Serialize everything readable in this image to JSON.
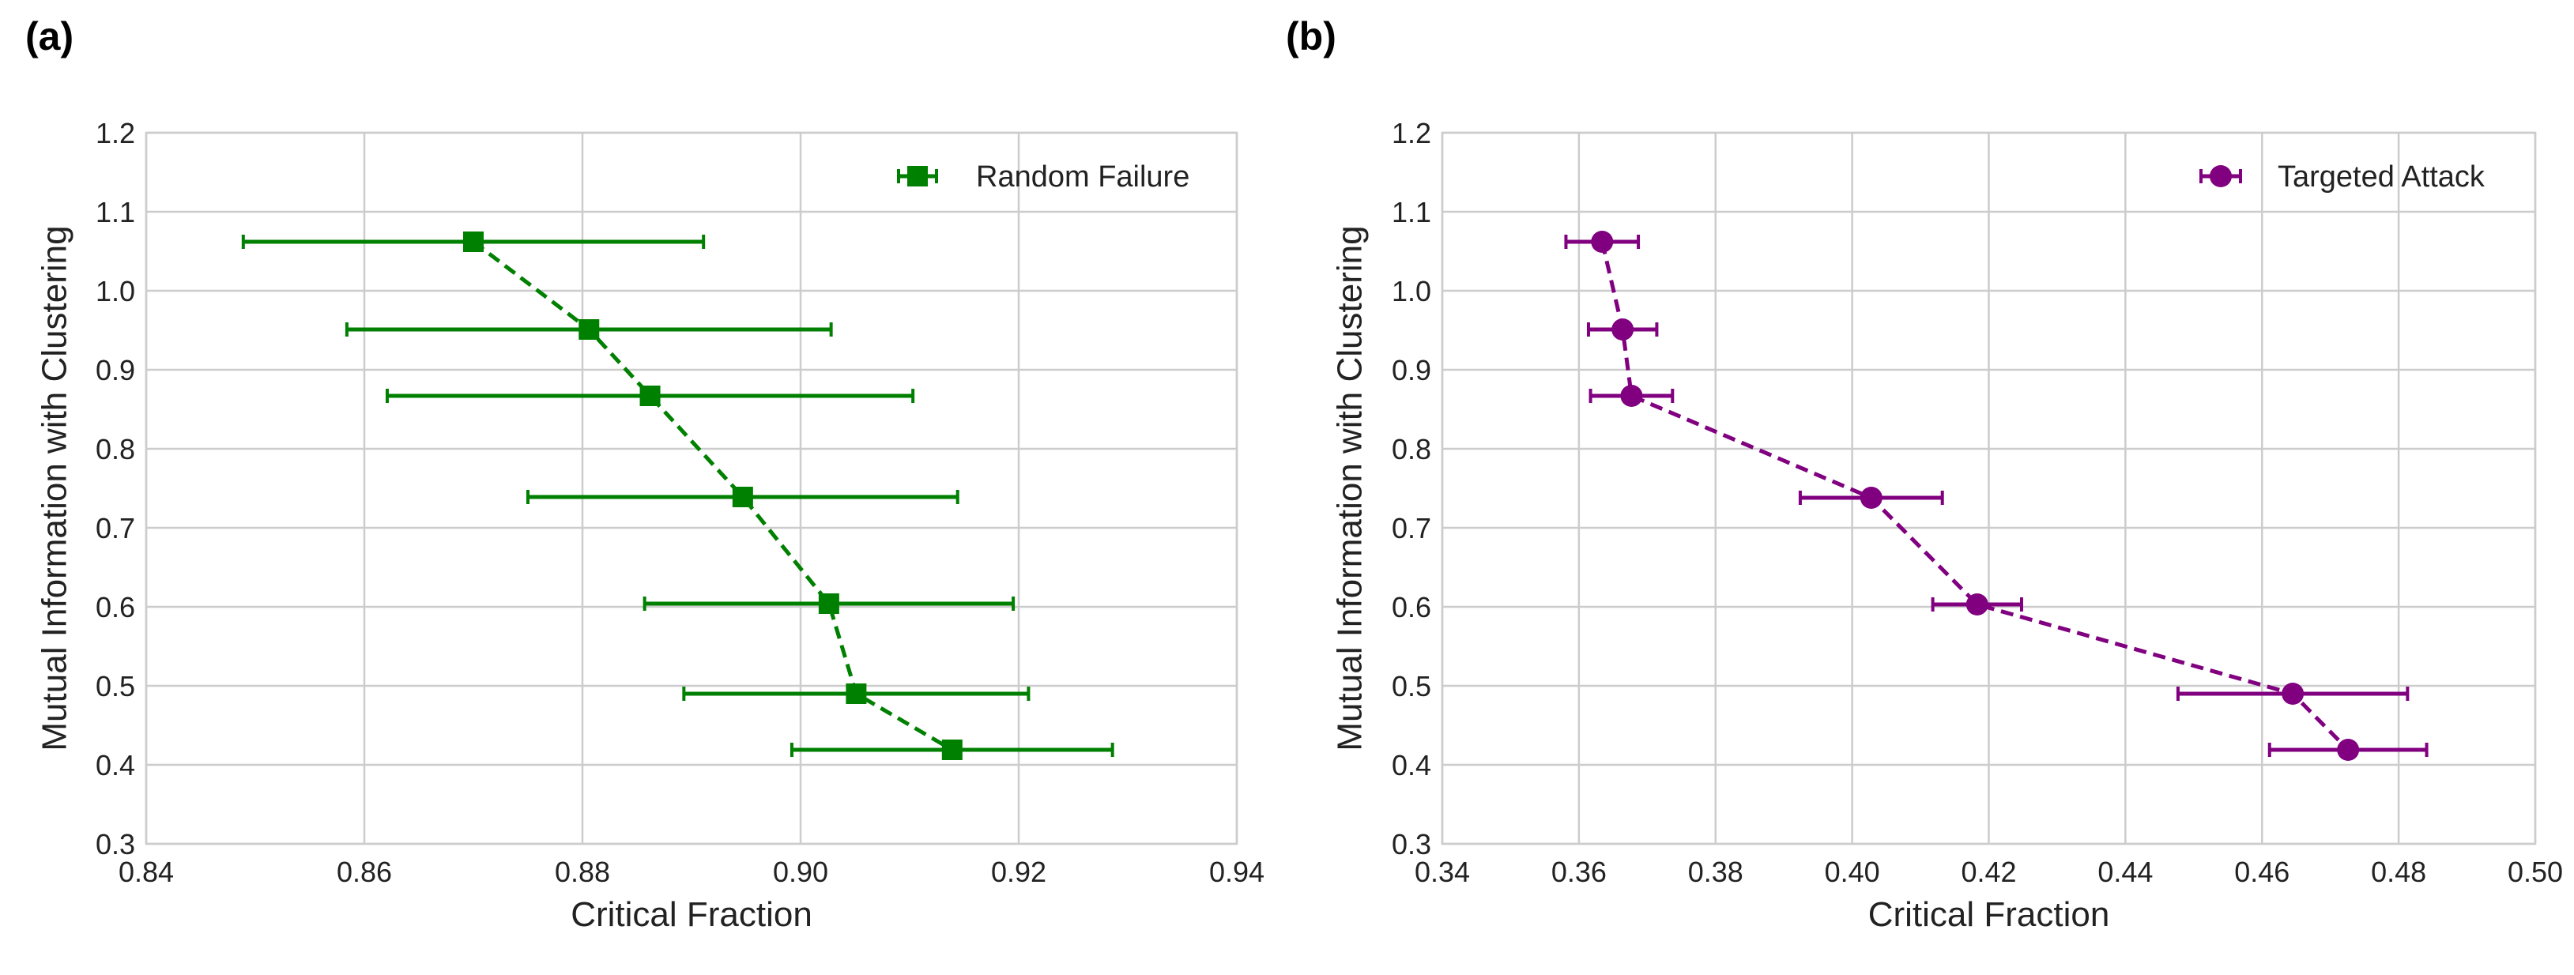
{
  "chart_data": [
    {
      "type": "scatter",
      "panel_label": "(a)",
      "title": "",
      "xlabel": "Critical Fraction",
      "ylabel": "Mutual Information with Clustering",
      "xlim": [
        0.84,
        0.94
      ],
      "ylim": [
        0.3,
        1.2
      ],
      "xticks": [
        "0.84",
        "0.86",
        "0.88",
        "0.90",
        "0.92",
        "0.94"
      ],
      "yticks": [
        "0.3",
        "0.4",
        "0.5",
        "0.6",
        "0.7",
        "0.8",
        "0.9",
        "1.0",
        "1.1",
        "1.2"
      ],
      "grid": true,
      "legend_position": "top-right",
      "series": [
        {
          "name": "Random Failure",
          "color": "#008000",
          "marker": "square",
          "line_style": "dashed",
          "x": [
            0.87,
            0.8806,
            0.8862,
            0.8947,
            0.9026,
            0.9051,
            0.9139
          ],
          "y": [
            1.062,
            0.951,
            0.867,
            0.739,
            0.604,
            0.49,
            0.419
          ],
          "xerr": [
            0.0211,
            0.0222,
            0.0241,
            0.0197,
            0.0169,
            0.0158,
            0.0147
          ]
        }
      ]
    },
    {
      "type": "scatter",
      "panel_label": "(b)",
      "title": "",
      "xlabel": "Critical Fraction",
      "ylabel": "Mutual Information with Clustering",
      "xlim": [
        0.34,
        0.5
      ],
      "ylim": [
        0.3,
        1.2
      ],
      "xticks": [
        "0.34",
        "0.36",
        "0.38",
        "0.40",
        "0.42",
        "0.44",
        "0.46",
        "0.48",
        "0.50"
      ],
      "yticks": [
        "0.3",
        "0.4",
        "0.5",
        "0.6",
        "0.7",
        "0.8",
        "0.9",
        "1.0",
        "1.1",
        "1.2"
      ],
      "grid": true,
      "legend_position": "top-right",
      "series": [
        {
          "name": "Targeted Attack",
          "color": "#800080",
          "marker": "circle",
          "line_style": "dashed",
          "x": [
            0.3634,
            0.3664,
            0.3677,
            0.4028,
            0.4183,
            0.4645,
            0.4726
          ],
          "y": [
            1.062,
            0.951,
            0.867,
            0.738,
            0.603,
            0.49,
            0.419
          ],
          "xerr": [
            0.0053,
            0.005,
            0.006,
            0.0104,
            0.0065,
            0.0168,
            0.0115
          ]
        }
      ]
    }
  ]
}
